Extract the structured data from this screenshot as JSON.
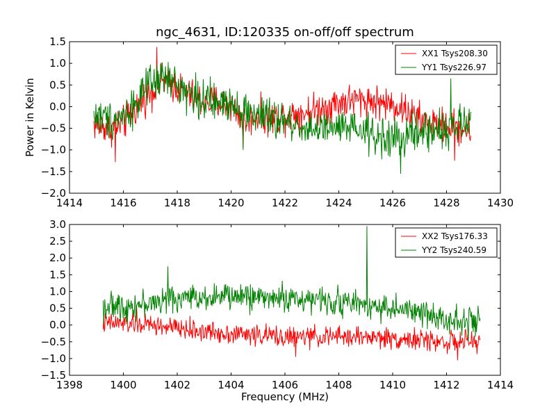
{
  "title": "ngc_4631, ID:120335 on-off/off spectrum",
  "chart_data": [
    {
      "type": "line",
      "title": "ngc_4631, ID:120335 on-off/off spectrum",
      "xlabel": "",
      "ylabel": "Power in Kelvin",
      "xlim": [
        1414,
        1430
      ],
      "ylim": [
        -2.0,
        1.5
      ],
      "xticks": [
        1414,
        1416,
        1418,
        1420,
        1422,
        1424,
        1426,
        1428,
        1430
      ],
      "xtick_labels": [
        "1414",
        "1416",
        "1418",
        "1420",
        "1422",
        "1424",
        "1426",
        "1428",
        "1430"
      ],
      "yticks": [
        -2.0,
        -1.5,
        -1.0,
        -0.5,
        0.0,
        0.5,
        1.0,
        1.5
      ],
      "ytick_labels": [
        "−2.0",
        "−1.5",
        "−1.0",
        "−0.5",
        "0.0",
        "0.5",
        "1.0",
        "1.5"
      ],
      "grid": false,
      "legend_position": "top-right",
      "x_start": 1414.9,
      "x_end": 1428.9,
      "series": [
        {
          "name": "XX1 Tsys208.30",
          "color": "#ff0000",
          "trend_x": [
            1414.9,
            1415.5,
            1416.0,
            1416.5,
            1417.0,
            1417.5,
            1418.0,
            1418.5,
            1419.0,
            1419.5,
            1420.0,
            1420.5,
            1421.0,
            1421.5,
            1422.0,
            1422.5,
            1423.0,
            1423.5,
            1424.0,
            1424.5,
            1425.0,
            1425.5,
            1426.0,
            1426.5,
            1427.0,
            1427.5,
            1428.0,
            1428.5,
            1428.9
          ],
          "trend_y": [
            -0.4,
            -0.5,
            -0.4,
            0.0,
            0.35,
            0.6,
            0.45,
            0.25,
            0.1,
            0.1,
            0.05,
            -0.35,
            -0.2,
            -0.3,
            -0.2,
            -0.15,
            -0.1,
            0.0,
            0.1,
            0.15,
            0.15,
            0.1,
            0.05,
            -0.1,
            -0.3,
            -0.4,
            -0.45,
            -0.5,
            -0.55
          ],
          "noise_amplitude": 0.28,
          "spikes": [
            [
              1417.25,
              1.38
            ],
            [
              1415.7,
              -1.28
            ],
            [
              1420.45,
              -0.95
            ],
            [
              1428.3,
              -1.25
            ]
          ]
        },
        {
          "name": "YY1 Tsys226.97",
          "color": "#008000",
          "trend_x": [
            1414.9,
            1415.5,
            1416.0,
            1416.5,
            1417.0,
            1417.5,
            1418.0,
            1418.5,
            1419.0,
            1419.5,
            1420.0,
            1420.5,
            1421.0,
            1421.5,
            1422.0,
            1422.5,
            1423.0,
            1423.5,
            1424.0,
            1424.5,
            1425.0,
            1425.5,
            1426.0,
            1426.5,
            1427.0,
            1427.5,
            1428.0,
            1428.5,
            1428.9
          ],
          "trend_y": [
            -0.2,
            -0.3,
            -0.2,
            0.1,
            0.5,
            0.65,
            0.5,
            0.3,
            0.15,
            0.05,
            0.15,
            -0.1,
            -0.2,
            -0.3,
            -0.35,
            -0.45,
            -0.5,
            -0.55,
            -0.5,
            -0.55,
            -0.6,
            -0.7,
            -0.75,
            -0.7,
            -0.6,
            -0.55,
            -0.5,
            -0.45,
            -0.4
          ],
          "noise_amplitude": 0.32,
          "spikes": [
            [
              1417.45,
              1.02
            ],
            [
              1426.3,
              -1.55
            ],
            [
              1428.15,
              0.65
            ],
            [
              1420.45,
              -1.0
            ]
          ]
        }
      ]
    },
    {
      "type": "line",
      "title": "",
      "xlabel": "Frequency (MHz)",
      "ylabel": "",
      "xlim": [
        1398,
        1414
      ],
      "ylim": [
        -1.5,
        3.0
      ],
      "xticks": [
        1398,
        1400,
        1402,
        1404,
        1406,
        1408,
        1410,
        1412,
        1414
      ],
      "xtick_labels": [
        "1398",
        "1400",
        "1402",
        "1404",
        "1406",
        "1408",
        "1410",
        "1412",
        "1414"
      ],
      "yticks": [
        -1.5,
        -1.0,
        -0.5,
        0.0,
        0.5,
        1.0,
        1.5,
        2.0,
        2.5,
        3.0
      ],
      "ytick_labels": [
        "−1.5",
        "−1.0",
        "−0.5",
        "0.0",
        "0.5",
        "1.0",
        "1.5",
        "2.0",
        "2.5",
        "3.0"
      ],
      "grid": false,
      "legend_position": "top-right",
      "x_start": 1399.25,
      "x_end": 1413.25,
      "series": [
        {
          "name": "XX2 Tsys176.33",
          "color": "#ff0000",
          "trend_x": [
            1399.25,
            1400.0,
            1401.0,
            1402.0,
            1403.0,
            1404.0,
            1405.0,
            1406.0,
            1407.0,
            1408.0,
            1409.0,
            1410.0,
            1411.0,
            1412.0,
            1413.25
          ],
          "trend_y": [
            0.05,
            0.05,
            0.0,
            -0.1,
            -0.2,
            -0.25,
            -0.3,
            -0.35,
            -0.35,
            -0.35,
            -0.35,
            -0.4,
            -0.45,
            -0.5,
            -0.5
          ],
          "noise_amplitude": 0.22,
          "spikes": [
            [
              1406.4,
              -0.95
            ],
            [
              1412.4,
              -1.05
            ],
            [
              1400.5,
              0.6
            ]
          ]
        },
        {
          "name": "YY2 Tsys240.59",
          "color": "#008000",
          "trend_x": [
            1399.25,
            1400.0,
            1401.0,
            1402.0,
            1403.0,
            1404.0,
            1405.0,
            1406.0,
            1407.0,
            1408.0,
            1409.0,
            1410.0,
            1411.0,
            1412.0,
            1413.25
          ],
          "trend_y": [
            0.55,
            0.55,
            0.65,
            0.8,
            0.85,
            0.85,
            0.85,
            0.8,
            0.75,
            0.7,
            0.6,
            0.5,
            0.35,
            0.2,
            0.1
          ],
          "noise_amplitude": 0.28,
          "spikes": [
            [
              1409.05,
              2.95
            ],
            [
              1401.65,
              1.75
            ],
            [
              1412.8,
              -0.5
            ]
          ]
        }
      ]
    }
  ]
}
